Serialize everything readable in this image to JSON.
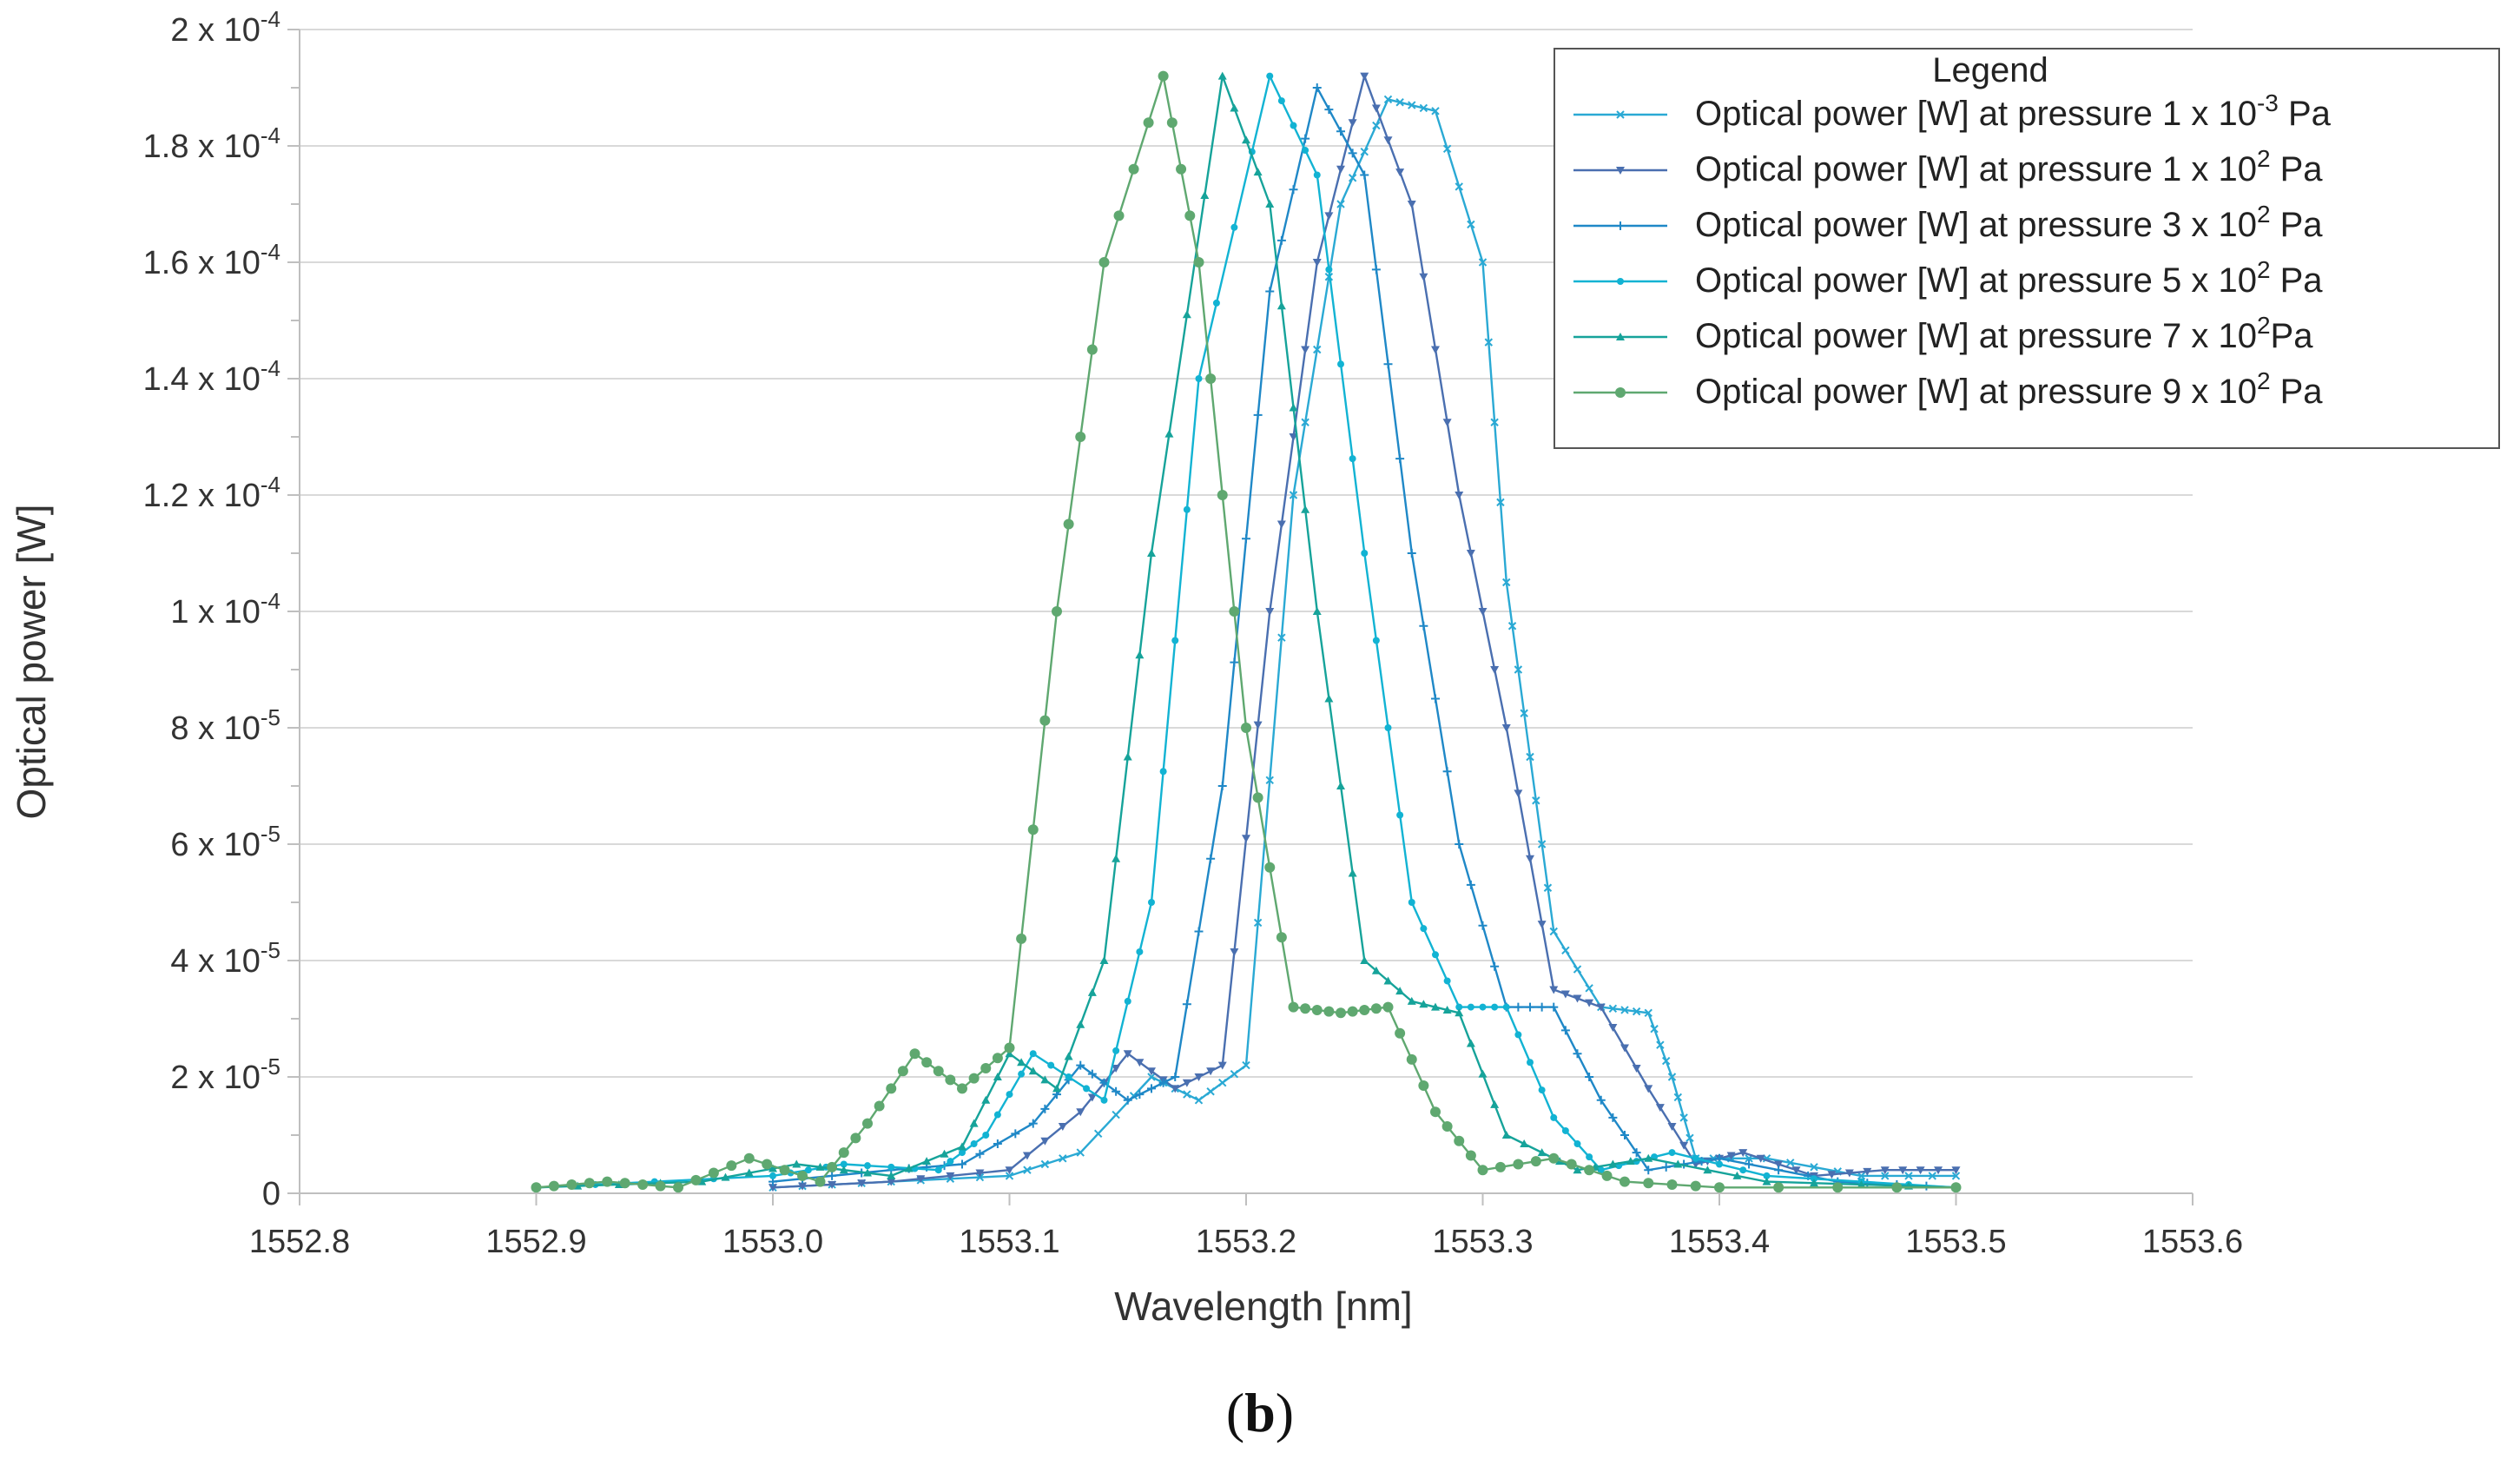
{
  "panel": {
    "open": "(",
    "letter": "b",
    "close": ")"
  },
  "colors": {
    "s1": "#2aa9d4",
    "s2": "#4a6fb0",
    "s3": "#1f88c7",
    "s4": "#12b3d3",
    "s5": "#16a39a",
    "s6": "#5fa870",
    "grid": "#d9d9d9",
    "axis": "#bfbfbf"
  },
  "chart_data": {
    "type": "line",
    "title": "",
    "xlabel": "Wavelength [nm]",
    "ylabel": "Optical power [W]",
    "xlim": [
      1552.8,
      1553.6
    ],
    "ylim": [
      0,
      0.0002
    ],
    "grid": "horizontal",
    "x_ticks": [
      {
        "value": 1552.8,
        "label": "1552.8"
      },
      {
        "value": 1552.9,
        "label": "1552.9"
      },
      {
        "value": 1553.0,
        "label": "1553.0"
      },
      {
        "value": 1553.1,
        "label": "1553.1"
      },
      {
        "value": 1553.2,
        "label": "1553.2"
      },
      {
        "value": 1553.3,
        "label": "1553.3"
      },
      {
        "value": 1553.4,
        "label": "1553.4"
      },
      {
        "value": 1553.5,
        "label": "1553.5"
      },
      {
        "value": 1553.6,
        "label": "1553.6"
      }
    ],
    "y_ticks": [
      {
        "value": 0,
        "label": "0",
        "mant": "0",
        "exp": ""
      },
      {
        "value": 2e-05,
        "label": "2 x 10-5",
        "mant": "2 x 10",
        "exp": "-5"
      },
      {
        "value": 4e-05,
        "label": "4 x 10-5",
        "mant": "4 x 10",
        "exp": "-5"
      },
      {
        "value": 6e-05,
        "label": "6 x 10-5",
        "mant": "6 x 10",
        "exp": "-5"
      },
      {
        "value": 8e-05,
        "label": "8 x 10-5",
        "mant": "8 x 10",
        "exp": "-5"
      },
      {
        "value": 0.0001,
        "label": "1 x 10-4",
        "mant": "1 x 10",
        "exp": "-4"
      },
      {
        "value": 0.00012,
        "label": "1.2 x 10-4",
        "mant": "1.2 x 10",
        "exp": "-4"
      },
      {
        "value": 0.00014,
        "label": "1.4 x 10-4",
        "mant": "1.4 x 10",
        "exp": "-4"
      },
      {
        "value": 0.00016,
        "label": "1.6 x 10-4",
        "mant": "1.6 x 10",
        "exp": "-4"
      },
      {
        "value": 0.00018,
        "label": "1.8 x 10-4",
        "mant": "1.8 x 10",
        "exp": "-4"
      },
      {
        "value": 0.0002,
        "label": "2 x 10-4",
        "mant": "2 x 10",
        "exp": "-4"
      }
    ],
    "legend": {
      "title": "Legend",
      "placement": "top-right"
    },
    "series": [
      {
        "name": "Optical power [W] at pressure 1 x 10-3 Pa",
        "label_pre": "Optical power [W] at pressure 1 x 10",
        "label_sup": "-3",
        "label_post": " Pa",
        "color": "#2aa9d4",
        "marker": "x",
        "points": [
          [
            1553.0,
            1e-06
          ],
          [
            1553.05,
            2e-06
          ],
          [
            1553.1,
            3e-06
          ],
          [
            1553.13,
            7e-06
          ],
          [
            1553.16,
            2e-05
          ],
          [
            1553.18,
            1.6e-05
          ],
          [
            1553.2,
            2.2e-05
          ],
          [
            1553.22,
            0.00012
          ],
          [
            1553.24,
            0.00017
          ],
          [
            1553.26,
            0.000188
          ],
          [
            1553.28,
            0.000186
          ],
          [
            1553.3,
            0.00016
          ],
          [
            1553.31,
            0.000105
          ],
          [
            1553.32,
            7.5e-05
          ],
          [
            1553.33,
            4.5e-05
          ],
          [
            1553.35,
            3.2e-05
          ],
          [
            1553.37,
            3.1e-05
          ],
          [
            1553.38,
            2e-05
          ],
          [
            1553.39,
            6e-06
          ],
          [
            1553.42,
            6e-06
          ],
          [
            1553.46,
            3e-06
          ],
          [
            1553.5,
            3e-06
          ]
        ]
      },
      {
        "name": "Optical power [W] at pressure 1 x 102 Pa",
        "label_pre": "Optical power [W] at pressure 1 x 10",
        "label_sup": "2",
        "label_post": " Pa",
        "color": "#4a6fb0",
        "marker": "tri-down",
        "points": [
          [
            1553.0,
            1e-06
          ],
          [
            1553.05,
            2e-06
          ],
          [
            1553.1,
            4e-06
          ],
          [
            1553.13,
            1.4e-05
          ],
          [
            1553.15,
            2.4e-05
          ],
          [
            1553.17,
            1.8e-05
          ],
          [
            1553.19,
            2.2e-05
          ],
          [
            1553.21,
            0.0001
          ],
          [
            1553.23,
            0.00016
          ],
          [
            1553.25,
            0.000192
          ],
          [
            1553.27,
            0.00017
          ],
          [
            1553.29,
            0.00012
          ],
          [
            1553.31,
            8e-05
          ],
          [
            1553.33,
            3.5e-05
          ],
          [
            1553.35,
            3.2e-05
          ],
          [
            1553.37,
            1.8e-05
          ],
          [
            1553.39,
            5e-06
          ],
          [
            1553.41,
            7e-06
          ],
          [
            1553.44,
            3e-06
          ],
          [
            1553.47,
            4e-06
          ],
          [
            1553.5,
            4e-06
          ]
        ]
      },
      {
        "name": "Optical power [W] at pressure 3 x 102 Pa",
        "label_pre": "Optical power [W] at pressure 3 x 10",
        "label_sup": "2",
        "label_post": " Pa",
        "color": "#1f88c7",
        "marker": "plus",
        "points": [
          [
            1553.0,
            2e-06
          ],
          [
            1553.05,
            4e-06
          ],
          [
            1553.08,
            5e-06
          ],
          [
            1553.11,
            1.2e-05
          ],
          [
            1553.13,
            2.2e-05
          ],
          [
            1553.15,
            1.6e-05
          ],
          [
            1553.17,
            2e-05
          ],
          [
            1553.19,
            7e-05
          ],
          [
            1553.21,
            0.000155
          ],
          [
            1553.23,
            0.00019
          ],
          [
            1553.25,
            0.000175
          ],
          [
            1553.27,
            0.00011
          ],
          [
            1553.29,
            6e-05
          ],
          [
            1553.31,
            3.2e-05
          ],
          [
            1553.33,
            3.2e-05
          ],
          [
            1553.35,
            1.6e-05
          ],
          [
            1553.37,
            4e-06
          ],
          [
            1553.4,
            6e-06
          ],
          [
            1553.45,
            2e-06
          ],
          [
            1553.5,
            1e-06
          ]
        ]
      },
      {
        "name": "Optical power [W] at pressure 5 x 102 Pa",
        "label_pre": "Optical power [W] at pressure 5 x 10",
        "label_sup": "2",
        "label_post": " Pa",
        "color": "#12b3d3",
        "marker": "dot",
        "points": [
          [
            1552.9,
            1e-06
          ],
          [
            1553.0,
            3e-06
          ],
          [
            1553.03,
            5e-06
          ],
          [
            1553.07,
            4e-06
          ],
          [
            1553.09,
            1e-05
          ],
          [
            1553.11,
            2.4e-05
          ],
          [
            1553.14,
            1.6e-05
          ],
          [
            1553.16,
            5e-05
          ],
          [
            1553.18,
            0.00014
          ],
          [
            1553.21,
            0.000192
          ],
          [
            1553.23,
            0.000175
          ],
          [
            1553.25,
            0.00011
          ],
          [
            1553.27,
            5e-05
          ],
          [
            1553.29,
            3.2e-05
          ],
          [
            1553.31,
            3.2e-05
          ],
          [
            1553.33,
            1.3e-05
          ],
          [
            1553.35,
            4e-06
          ],
          [
            1553.38,
            7e-06
          ],
          [
            1553.42,
            3e-06
          ],
          [
            1553.5,
            1e-06
          ]
        ]
      },
      {
        "name": "Optical power [W] at pressure 7 x 102Pa",
        "label_pre": "Optical power [W] at pressure 7 x 10",
        "label_sup": "2",
        "label_post": "Pa",
        "color": "#16a39a",
        "marker": "tri-up",
        "points": [
          [
            1552.9,
            1e-06
          ],
          [
            1552.97,
            2e-06
          ],
          [
            1553.01,
            5e-06
          ],
          [
            1553.05,
            3e-06
          ],
          [
            1553.08,
            8e-06
          ],
          [
            1553.1,
            2.4e-05
          ],
          [
            1553.12,
            1.8e-05
          ],
          [
            1553.14,
            4e-05
          ],
          [
            1553.16,
            0.00011
          ],
          [
            1553.19,
            0.000192
          ],
          [
            1553.21,
            0.00017
          ],
          [
            1553.23,
            0.0001
          ],
          [
            1553.25,
            4e-05
          ],
          [
            1553.27,
            3.3e-05
          ],
          [
            1553.29,
            3.1e-05
          ],
          [
            1553.31,
            1e-05
          ],
          [
            1553.34,
            4e-06
          ],
          [
            1553.37,
            6e-06
          ],
          [
            1553.42,
            2e-06
          ],
          [
            1553.5,
            1e-06
          ]
        ]
      },
      {
        "name": "Optical power [W] at pressure 9 x 102 Pa",
        "label_pre": "Optical power [W] at pressure 9 x 10",
        "label_sup": "2",
        "label_post": " Pa",
        "color": "#5fa870",
        "marker": "dot-large",
        "points": [
          [
            1552.9,
            1e-06
          ],
          [
            1552.93,
            2e-06
          ],
          [
            1552.96,
            1e-06
          ],
          [
            1552.99,
            6e-06
          ],
          [
            1553.02,
            2e-06
          ],
          [
            1553.04,
            1.2e-05
          ],
          [
            1553.06,
            2.4e-05
          ],
          [
            1553.08,
            1.8e-05
          ],
          [
            1553.1,
            2.5e-05
          ],
          [
            1553.12,
            0.0001
          ],
          [
            1553.14,
            0.00016
          ],
          [
            1553.165,
            0.000192
          ],
          [
            1553.18,
            0.00016
          ],
          [
            1553.2,
            8e-05
          ],
          [
            1553.22,
            3.2e-05
          ],
          [
            1553.24,
            3.1e-05
          ],
          [
            1553.26,
            3.2e-05
          ],
          [
            1553.28,
            1.4e-05
          ],
          [
            1553.3,
            4e-06
          ],
          [
            1553.33,
            6e-06
          ],
          [
            1553.36,
            2e-06
          ],
          [
            1553.4,
            1e-06
          ],
          [
            1553.5,
            1e-06
          ]
        ]
      }
    ]
  }
}
